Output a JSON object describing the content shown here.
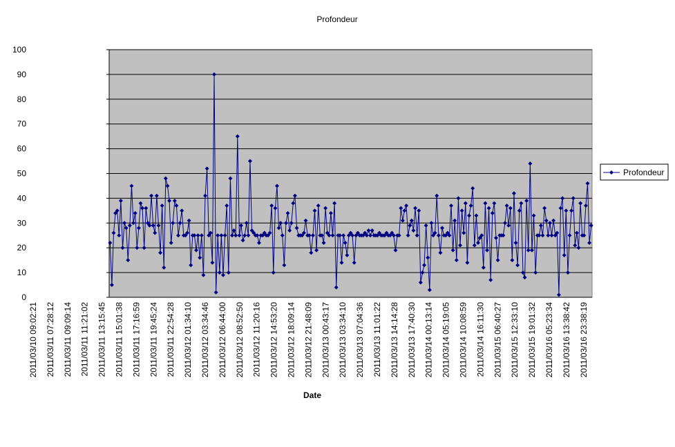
{
  "chart_data": {
    "type": "line",
    "title": "Profondeur",
    "x_label": "Date",
    "categories": [
      "2011/03/10 09:02:21",
      null,
      null,
      null,
      null,
      null,
      null,
      null,
      "2011/03/11 07:28:12",
      null,
      null,
      null,
      null,
      null,
      null,
      null,
      "2011/03/11 09:09:14",
      null,
      null,
      null,
      null,
      null,
      null,
      null,
      "2011/03/11 11:21:02",
      null,
      null,
      null,
      null,
      null,
      null,
      null,
      "2011/03/11 13:15:45",
      null,
      null,
      null,
      null,
      null,
      null,
      null,
      "2011/03/11 15:01:38",
      null,
      null,
      null,
      null,
      null,
      null,
      null,
      "2011/03/11 17:16:59",
      null,
      null,
      null,
      null,
      null,
      null,
      null,
      "2011/03/11 19:45:24",
      null,
      null,
      null,
      null,
      null,
      null,
      null,
      "2011/03/11 22:54:28",
      null,
      null,
      null,
      null,
      null,
      null,
      null,
      "2011/03/12 01:34:10",
      null,
      null,
      null,
      null,
      null,
      null,
      null,
      "2011/03/12 03:34:46",
      null,
      null,
      null,
      null,
      null,
      null,
      null,
      "2011/03/12 06:44:00",
      null,
      null,
      null,
      null,
      null,
      null,
      null,
      "2011/03/12 08:52:50",
      null,
      null,
      null,
      null,
      null,
      null,
      null,
      "2011/03/12 11:20:16",
      null,
      null,
      null,
      null,
      null,
      null,
      null,
      "2011/03/12 14:53:20",
      null,
      null,
      null,
      null,
      null,
      null,
      null,
      "2011/03/12 18:09:14",
      null,
      null,
      null,
      null,
      null,
      null,
      null,
      "2011/03/12 21:48:09",
      null,
      null,
      null,
      null,
      null,
      null,
      null,
      "2011/03/13 00:43:17",
      null,
      null,
      null,
      null,
      null,
      null,
      null,
      "2011/03/13 03:34:10",
      null,
      null,
      null,
      null,
      null,
      null,
      null,
      "2011/03/13 07:04:36",
      null,
      null,
      null,
      null,
      null,
      null,
      null,
      "2011/03/13 11:01:22",
      null,
      null,
      null,
      null,
      null,
      null,
      null,
      "2011/03/13 14:14:28",
      null,
      null,
      null,
      null,
      null,
      null,
      null,
      "2011/03/13 17:40:30",
      null,
      null,
      null,
      null,
      null,
      null,
      null,
      "2011/03/14 00:13:14",
      null,
      null,
      null,
      null,
      null,
      null,
      null,
      "2011/03/14 05:19:05",
      null,
      null,
      null,
      null,
      null,
      null,
      null,
      "2011/03/14 10:08:59",
      null,
      null,
      null,
      null,
      null,
      null,
      null,
      "2011/03/14 16:11:30",
      null,
      null,
      null,
      null,
      null,
      null,
      null,
      "2011/03/15 06:40:27",
      null,
      null,
      null,
      null,
      null,
      null,
      null,
      "2011/03/15 12:33:10",
      null,
      null,
      null,
      null,
      null,
      null,
      null,
      "2011/03/15 19:01:32",
      null,
      null,
      null,
      null,
      null,
      null,
      null,
      "2011/03/16 05:23:34",
      null,
      null,
      null,
      null,
      null,
      null,
      null,
      "2011/03/16 13:38:42",
      null,
      null,
      null,
      null,
      null,
      null,
      null,
      "2011/03/16 23:38:19",
      null,
      null,
      null,
      null,
      null,
      null,
      null,
      null,
      null,
      null,
      null,
      null
    ],
    "series": [
      {
        "name": "Profondeur",
        "color": "#000080",
        "values": [
          22,
          5,
          26,
          34,
          35,
          25,
          39,
          20,
          30,
          28,
          15,
          29,
          45,
          30,
          34,
          20,
          28,
          38,
          36,
          20,
          36,
          30,
          29,
          41,
          29,
          26,
          41,
          29,
          18,
          37,
          12,
          48,
          45,
          39,
          22,
          30,
          39,
          37,
          25,
          30,
          35,
          25,
          25,
          26,
          31,
          13,
          25,
          25,
          19,
          25,
          16,
          25,
          9,
          41,
          52,
          25,
          26,
          14,
          90,
          2,
          25,
          10,
          25,
          9,
          25,
          37,
          10,
          48,
          25,
          27,
          25,
          65,
          25,
          29,
          23,
          25,
          30,
          25,
          55,
          27,
          26,
          25,
          25,
          22,
          25,
          25,
          26,
          25,
          25,
          26,
          37,
          10,
          36,
          45,
          28,
          30,
          25,
          13,
          30,
          34,
          27,
          30,
          38,
          41,
          28,
          25,
          25,
          25,
          26,
          31,
          25,
          25,
          18,
          25,
          35,
          19,
          37,
          25,
          25,
          22,
          36,
          26,
          25,
          34,
          25,
          38,
          4,
          25,
          25,
          14,
          25,
          22,
          17,
          25,
          26,
          25,
          14,
          25,
          26,
          25,
          25,
          25,
          26,
          25,
          27,
          25,
          27,
          25,
          25,
          25,
          26,
          25,
          25,
          25,
          26,
          25,
          25,
          26,
          25,
          19,
          25,
          25,
          36,
          31,
          35,
          37,
          25,
          29,
          31,
          27,
          36,
          25,
          35,
          6,
          10,
          13,
          29,
          16,
          3,
          30,
          25,
          26,
          41,
          25,
          18,
          28,
          25,
          25,
          26,
          25,
          37,
          19,
          31,
          15,
          40,
          21,
          35,
          26,
          38,
          14,
          33,
          37,
          44,
          21,
          33,
          22,
          24,
          25,
          12,
          38,
          19,
          36,
          7,
          34,
          38,
          24,
          15,
          25,
          25,
          25,
          30,
          37,
          29,
          36,
          15,
          42,
          22,
          13,
          35,
          38,
          10,
          8,
          39,
          19,
          54,
          19,
          33,
          10,
          25,
          25,
          29,
          25,
          36,
          31,
          25,
          30,
          25,
          31,
          25,
          26,
          1,
          36,
          40,
          17,
          35,
          10,
          25,
          35,
          40,
          21,
          26,
          20,
          38,
          25,
          25,
          37,
          46,
          22,
          29
        ]
      }
    ],
    "ylim": [
      0,
      100
    ],
    "yticks": [
      0,
      10,
      20,
      30,
      40,
      50,
      60,
      70,
      80,
      90,
      100
    ],
    "grid": true,
    "legend": "right"
  }
}
